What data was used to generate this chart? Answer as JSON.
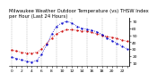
{
  "title": "Milwaukee Weather Outdoor Temperature (vs) THSW Index per Hour (Last 24 Hours)",
  "red_values": [
    28,
    27,
    25,
    24,
    24,
    25,
    30,
    38,
    46,
    52,
    56,
    58,
    58,
    57,
    56,
    56,
    54,
    52,
    50,
    48,
    47,
    45,
    43,
    41
  ],
  "blue_values": [
    18,
    16,
    14,
    12,
    11,
    13,
    22,
    36,
    52,
    63,
    68,
    70,
    68,
    63,
    60,
    59,
    57,
    55,
    51,
    46,
    42,
    38,
    34,
    30
  ],
  "ylim": [
    5,
    75
  ],
  "ytick_values": [
    10,
    20,
    30,
    40,
    50,
    60,
    70
  ],
  "ytick_labels": [
    "10",
    "20",
    "30",
    "40",
    "50",
    "60",
    "70"
  ],
  "red_color": "#cc0000",
  "blue_color": "#0000cc",
  "bg_color": "#ffffff",
  "grid_color": "#888888",
  "title_fontsize": 3.8,
  "tick_fontsize": 3.2,
  "num_hours": 24,
  "grid_every": 3
}
